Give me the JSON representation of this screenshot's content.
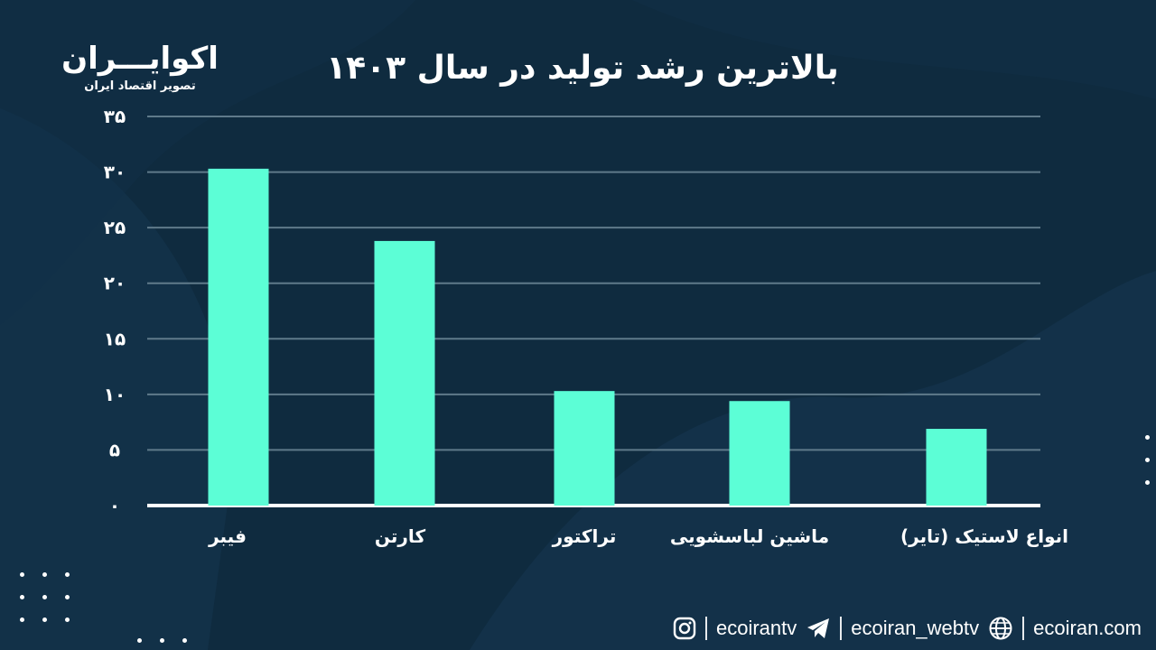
{
  "header": {
    "title": "بالاترین رشد تولید در سال ۱۴۰۳",
    "logo_name": "اکوایـــران",
    "logo_sub": "تصویر اقتصاد ایران"
  },
  "chart_data": {
    "type": "bar",
    "title": "بالاترین رشد تولید در سال ۱۴۰۳",
    "categories": [
      "فیبر",
      "کارتن",
      "تراکتور",
      "ماشین لباسشویی",
      "انواع لاستیک (تایر)"
    ],
    "values": [
      30.3,
      23.8,
      10.3,
      9.4,
      6.9
    ],
    "ylim": [
      0,
      35
    ],
    "yticks": [
      0,
      5,
      10,
      15,
      20,
      25,
      30,
      35
    ],
    "ytick_labels": [
      "۰",
      "۵",
      "۱۰",
      "۱۵",
      "۲۰",
      "۲۵",
      "۳۰",
      "۳۵"
    ],
    "xlabel": "",
    "ylabel": "",
    "grid": true,
    "colors": {
      "bar": "#5cfed6",
      "grid": "#5f7a8a",
      "axis": "#ffffff"
    }
  },
  "footer": {
    "instagram": "ecoirantv",
    "telegram": "ecoiran_webtv",
    "website": "ecoiran.com",
    "icons": [
      "instagram-icon",
      "telegram-icon",
      "globe-icon"
    ]
  },
  "theme": {
    "background": "#0f2b3f",
    "shape": "#17384f"
  }
}
